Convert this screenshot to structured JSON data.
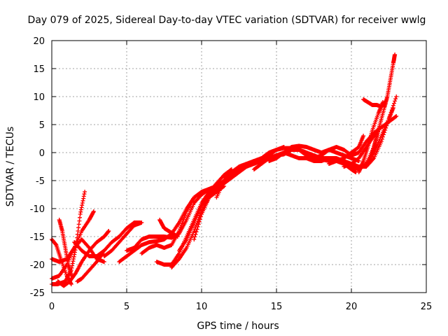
{
  "chart_data": {
    "type": "scatter",
    "title": "Day 079 of 2025, Sidereal Day-to-day VTEC variation (SDTVAR) for receiver wwlg",
    "xlabel": "GPS time / hours",
    "ylabel": "SDTVAR / TECUs",
    "xlim": [
      0,
      25
    ],
    "ylim": [
      -25,
      20
    ],
    "x_ticks": [
      "0",
      "5",
      "10",
      "15",
      "20",
      "25"
    ],
    "y_ticks": [
      "20",
      "15",
      "10",
      "5",
      "0",
      "-5",
      "-10",
      "-15",
      "-20",
      "-25"
    ],
    "grid": true,
    "marker": "plus",
    "color": "#ff0000",
    "series": [
      {
        "points": [
          [
            0.0,
            -15.5
          ],
          [
            0.3,
            -16.5
          ],
          [
            0.6,
            -19
          ],
          [
            1.0,
            -22
          ],
          [
            1.3,
            -23.5
          ]
        ]
      },
      {
        "points": [
          [
            0.0,
            -19
          ],
          [
            0.5,
            -19.5
          ],
          [
            1.0,
            -19
          ],
          [
            1.5,
            -17
          ],
          [
            2.0,
            -15.5
          ],
          [
            2.5,
            -17
          ],
          [
            3.0,
            -19
          ],
          [
            3.5,
            -19.5
          ]
        ]
      },
      {
        "points": [
          [
            0.0,
            -22.5
          ],
          [
            0.5,
            -22
          ],
          [
            1.0,
            -20
          ],
          [
            1.5,
            -17
          ],
          [
            2.0,
            -14
          ],
          [
            2.5,
            -12
          ],
          [
            2.8,
            -10.5
          ]
        ]
      },
      {
        "points": [
          [
            0.0,
            -23.5
          ],
          [
            0.4,
            -23.5
          ],
          [
            0.9,
            -23
          ],
          [
            1.3,
            -21
          ],
          [
            1.6,
            -17
          ],
          [
            1.9,
            -11
          ],
          [
            2.2,
            -7
          ]
        ]
      },
      {
        "points": [
          [
            0.5,
            -12
          ],
          [
            0.7,
            -14
          ],
          [
            0.9,
            -17
          ],
          [
            1.1,
            -20
          ],
          [
            1.3,
            -22
          ]
        ]
      },
      {
        "points": [
          [
            0.4,
            -23
          ],
          [
            0.8,
            -23.8
          ],
          [
            1.2,
            -23
          ],
          [
            1.6,
            -21.5
          ],
          [
            2.0,
            -19.5
          ],
          [
            2.5,
            -17.5
          ],
          [
            3.0,
            -16
          ],
          [
            3.5,
            -15
          ],
          [
            3.8,
            -14
          ]
        ]
      },
      {
        "points": [
          [
            1.7,
            -23
          ],
          [
            2.0,
            -22.5
          ],
          [
            2.5,
            -21
          ],
          [
            3.0,
            -19.5
          ],
          [
            3.4,
            -18
          ]
        ]
      },
      {
        "points": [
          [
            1.5,
            -16
          ],
          [
            2.0,
            -17.5
          ],
          [
            2.5,
            -18.5
          ],
          [
            3.0,
            -18.5
          ],
          [
            3.5,
            -17.5
          ],
          [
            4.0,
            -16
          ],
          [
            4.5,
            -15
          ],
          [
            5.0,
            -13.5
          ],
          [
            5.5,
            -12.5
          ],
          [
            5.9,
            -12.5
          ]
        ]
      },
      {
        "points": [
          [
            3.5,
            -18.5
          ],
          [
            4.0,
            -17.5
          ],
          [
            4.5,
            -16
          ],
          [
            5.0,
            -14.5
          ],
          [
            5.5,
            -13
          ],
          [
            6.0,
            -12.5
          ]
        ]
      },
      {
        "points": [
          [
            4.5,
            -19.5
          ],
          [
            5.0,
            -18.5
          ],
          [
            5.5,
            -17.5
          ],
          [
            6.0,
            -16.5
          ],
          [
            6.5,
            -16
          ],
          [
            7.0,
            -15.8
          ],
          [
            7.5,
            -15.5
          ],
          [
            8.0,
            -14.5
          ],
          [
            8.5,
            -12.5
          ],
          [
            9.0,
            -10
          ],
          [
            9.5,
            -8
          ],
          [
            10.0,
            -7
          ],
          [
            10.5,
            -6.5
          ],
          [
            11.0,
            -6
          ],
          [
            11.5,
            -5
          ]
        ]
      },
      {
        "points": [
          [
            5.0,
            -17.5
          ],
          [
            5.5,
            -17
          ],
          [
            6.0,
            -15.5
          ],
          [
            6.5,
            -15
          ],
          [
            7.0,
            -15
          ],
          [
            7.5,
            -15
          ],
          [
            8.0,
            -15.2
          ],
          [
            8.5,
            -14.5
          ],
          [
            9.0,
            -12
          ],
          [
            9.5,
            -9
          ],
          [
            10.0,
            -7.5
          ],
          [
            10.5,
            -6.5
          ],
          [
            11.0,
            -6
          ]
        ]
      },
      {
        "points": [
          [
            6.0,
            -18
          ],
          [
            6.5,
            -17
          ],
          [
            7.0,
            -16.5
          ],
          [
            7.5,
            -17
          ],
          [
            8.0,
            -16.5
          ],
          [
            8.5,
            -14
          ],
          [
            9.0,
            -10.5
          ],
          [
            9.5,
            -8
          ]
        ]
      },
      {
        "points": [
          [
            7.2,
            -12
          ],
          [
            7.5,
            -13.5
          ],
          [
            7.8,
            -14
          ],
          [
            8.1,
            -14.5
          ],
          [
            8.4,
            -15
          ]
        ]
      },
      {
        "points": [
          [
            7.0,
            -19.5
          ],
          [
            7.5,
            -20
          ],
          [
            8.0,
            -20
          ],
          [
            8.5,
            -18
          ],
          [
            9.0,
            -15
          ],
          [
            9.5,
            -12
          ],
          [
            10.0,
            -9
          ],
          [
            10.5,
            -7
          ],
          [
            11.0,
            -5.5
          ],
          [
            11.5,
            -4
          ],
          [
            12.0,
            -3
          ]
        ]
      },
      {
        "points": [
          [
            8.0,
            -20.5
          ],
          [
            8.5,
            -19
          ],
          [
            9.0,
            -17
          ],
          [
            9.5,
            -14
          ],
          [
            10.0,
            -10.5
          ],
          [
            10.5,
            -8
          ],
          [
            11.0,
            -7
          ],
          [
            11.5,
            -6
          ]
        ]
      },
      {
        "points": [
          [
            8.5,
            -17.5
          ],
          [
            9.0,
            -15.5
          ],
          [
            9.5,
            -12.5
          ],
          [
            10.0,
            -9.5
          ],
          [
            10.5,
            -7.5
          ],
          [
            11.0,
            -6.5
          ],
          [
            11.5,
            -5
          ],
          [
            12.0,
            -4
          ],
          [
            12.5,
            -3
          ]
        ]
      },
      {
        "points": [
          [
            9.5,
            -15.5
          ],
          [
            10.0,
            -11
          ],
          [
            10.5,
            -8
          ],
          [
            11.0,
            -6.5
          ],
          [
            11.5,
            -5.5
          ],
          [
            12.0,
            -4.5
          ],
          [
            12.5,
            -3.5
          ],
          [
            13.0,
            -2.5
          ],
          [
            13.5,
            -2
          ],
          [
            14.0,
            -1.5
          ],
          [
            14.5,
            -0.5
          ],
          [
            15.0,
            0.5
          ],
          [
            15.5,
            1
          ]
        ]
      },
      {
        "points": [
          [
            11.0,
            -8
          ],
          [
            11.5,
            -5
          ],
          [
            12.0,
            -4
          ],
          [
            12.5,
            -3
          ],
          [
            13.0,
            -2.5
          ],
          [
            13.5,
            -1.5
          ],
          [
            14.0,
            -1
          ],
          [
            14.5,
            0
          ],
          [
            15.0,
            0.5
          ],
          [
            15.5,
            0.8
          ],
          [
            16.0,
            0.8
          ],
          [
            16.5,
            0.5
          ],
          [
            17.0,
            0
          ],
          [
            17.5,
            -0.5
          ],
          [
            18.0,
            -1
          ],
          [
            18.5,
            -1
          ],
          [
            19.0,
            -1
          ],
          [
            19.5,
            -1.5
          ],
          [
            20.0,
            -2
          ],
          [
            20.5,
            -2.5
          ],
          [
            21.0,
            -2.5
          ],
          [
            21.5,
            -1
          ],
          [
            22.0,
            2
          ],
          [
            22.5,
            6
          ],
          [
            23.0,
            10
          ]
        ]
      },
      {
        "points": [
          [
            11.5,
            -4.5
          ],
          [
            12.0,
            -3.5
          ],
          [
            12.5,
            -2.5
          ],
          [
            13.0,
            -2
          ],
          [
            13.5,
            -1.5
          ],
          [
            14.0,
            -1.5
          ],
          [
            14.5,
            -1
          ],
          [
            15.0,
            -0.5
          ],
          [
            15.5,
            -0.3
          ],
          [
            16.0,
            0.5
          ],
          [
            16.5,
            0.5
          ],
          [
            17.0,
            -0.5
          ],
          [
            17.5,
            -1
          ],
          [
            18.0,
            -1.2
          ],
          [
            18.5,
            -1.5
          ],
          [
            19.0,
            -1.2
          ],
          [
            19.5,
            -1.5
          ],
          [
            20.0,
            -2.5
          ],
          [
            20.5,
            -3
          ],
          [
            21.0,
            -2
          ],
          [
            21.5,
            0
          ],
          [
            22.0,
            3
          ],
          [
            22.5,
            6
          ],
          [
            22.8,
            8
          ]
        ]
      },
      {
        "points": [
          [
            13.5,
            -3
          ],
          [
            14.0,
            -2
          ],
          [
            14.5,
            -1
          ],
          [
            15.0,
            -0.5
          ],
          [
            15.5,
            0
          ],
          [
            16.0,
            1
          ],
          [
            16.5,
            1.2
          ],
          [
            17.0,
            1
          ],
          [
            17.5,
            0.5
          ],
          [
            18.0,
            0
          ],
          [
            18.5,
            0.5
          ],
          [
            19.0,
            0
          ],
          [
            19.5,
            -0.5
          ],
          [
            20.0,
            -1
          ],
          [
            20.5,
            -1.5
          ]
        ]
      },
      {
        "points": [
          [
            14.5,
            -1.5
          ],
          [
            15.0,
            -1
          ],
          [
            15.5,
            0
          ],
          [
            16.0,
            -0.5
          ],
          [
            16.5,
            -1
          ],
          [
            17.0,
            -1
          ],
          [
            17.5,
            -1.5
          ],
          [
            18.0,
            -1.5
          ],
          [
            18.5,
            -1
          ],
          [
            19.0,
            -1.5
          ],
          [
            19.5,
            -2
          ],
          [
            20.0,
            -3
          ],
          [
            20.3,
            -3.5
          ]
        ]
      },
      {
        "points": [
          [
            16.5,
            0.5
          ],
          [
            17.0,
            0
          ],
          [
            17.5,
            -1
          ],
          [
            18.0,
            -0.5
          ],
          [
            18.5,
            0.5
          ],
          [
            19.0,
            1
          ],
          [
            19.5,
            0.5
          ],
          [
            20.0,
            -0.5
          ],
          [
            20.5,
            0
          ],
          [
            21.0,
            2
          ],
          [
            21.5,
            3.5
          ],
          [
            22.0,
            4.5
          ],
          [
            22.5,
            5.5
          ],
          [
            23.0,
            6.5
          ]
        ]
      },
      {
        "points": [
          [
            18.5,
            -2
          ],
          [
            19.0,
            -1.5
          ],
          [
            19.5,
            -1
          ],
          [
            20.0,
            0
          ],
          [
            20.5,
            1
          ],
          [
            20.8,
            3
          ]
        ]
      },
      {
        "points": [
          [
            19.5,
            -2.5
          ],
          [
            20.0,
            -2
          ],
          [
            20.5,
            -1
          ],
          [
            21.0,
            1
          ],
          [
            21.5,
            3
          ],
          [
            21.9,
            4.5
          ]
        ]
      },
      {
        "points": [
          [
            20.5,
            -3
          ],
          [
            21.0,
            -2
          ],
          [
            21.5,
            1
          ],
          [
            21.8,
            4
          ]
        ]
      },
      {
        "points": [
          [
            20.5,
            -3.5
          ],
          [
            20.8,
            -1.5
          ],
          [
            21.1,
            1
          ],
          [
            21.4,
            4
          ],
          [
            21.8,
            7
          ],
          [
            22.1,
            9
          ]
        ]
      },
      {
        "points": [
          [
            20.8,
            9.5
          ],
          [
            21.1,
            9
          ],
          [
            21.4,
            8.5
          ],
          [
            21.7,
            8.5
          ],
          [
            22.0,
            8.2
          ],
          [
            22.3,
            9.2
          ]
        ]
      },
      {
        "points": [
          [
            21.3,
            -1
          ],
          [
            21.6,
            2
          ],
          [
            21.9,
            5
          ],
          [
            22.2,
            8
          ],
          [
            22.4,
            10
          ],
          [
            22.6,
            13
          ],
          [
            22.8,
            16
          ],
          [
            22.9,
            17.5
          ]
        ]
      }
    ]
  }
}
